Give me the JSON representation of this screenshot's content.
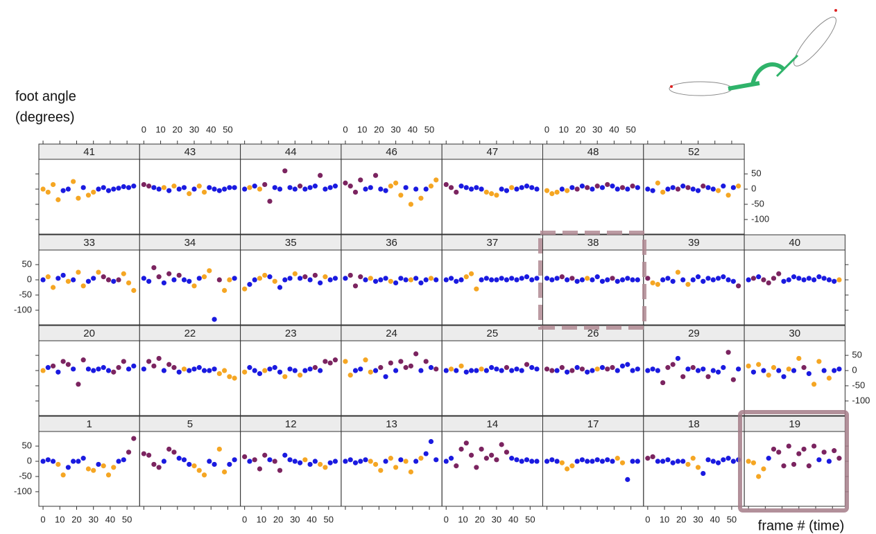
{
  "chart_data": {
    "type": "scatter",
    "ylabel": [
      "foot angle",
      "(degrees)"
    ],
    "xlabel": "frame # (time)",
    "x": [
      0,
      3,
      6,
      9,
      12,
      15,
      18,
      21,
      24,
      27,
      30,
      33,
      36,
      39,
      42,
      45,
      48,
      51,
      54
    ],
    "xlim": [
      -2.5,
      57.5
    ],
    "ylim": [
      -148,
      98
    ],
    "xticks": [
      0,
      10,
      20,
      30,
      40,
      50
    ],
    "yticks": [
      50,
      0,
      -50,
      -100
    ],
    "colors": [
      "#1a1ae0",
      "#f5a623",
      "#7b2460"
    ],
    "panels": [
      {
        "title": "41",
        "values": [
          0,
          -10,
          15,
          -35,
          -5,
          0,
          25,
          -30,
          5,
          -20,
          -10,
          0,
          5,
          -5,
          0,
          3,
          8,
          5,
          10
        ],
        "groups": [
          1,
          1,
          1,
          1,
          0,
          0,
          1,
          1,
          0,
          1,
          1,
          0,
          0,
          0,
          0,
          0,
          0,
          0,
          0
        ]
      },
      {
        "title": "43",
        "values": [
          15,
          10,
          5,
          0,
          5,
          -5,
          10,
          0,
          5,
          -15,
          0,
          10,
          -10,
          5,
          0,
          -5,
          0,
          5,
          5
        ],
        "groups": [
          2,
          2,
          0,
          0,
          1,
          0,
          1,
          0,
          0,
          1,
          0,
          1,
          1,
          0,
          0,
          0,
          0,
          0,
          0
        ]
      },
      {
        "title": "44",
        "values": [
          0,
          5,
          10,
          0,
          15,
          -40,
          5,
          0,
          60,
          5,
          0,
          10,
          0,
          5,
          10,
          45,
          0,
          5,
          10
        ],
        "groups": [
          0,
          1,
          0,
          1,
          2,
          2,
          0,
          0,
          2,
          0,
          0,
          2,
          0,
          0,
          0,
          2,
          0,
          0,
          0
        ]
      },
      {
        "title": "46",
        "values": [
          20,
          10,
          -10,
          30,
          0,
          5,
          45,
          0,
          -5,
          10,
          20,
          -20,
          5,
          -50,
          0,
          -30,
          0,
          10,
          30
        ],
        "groups": [
          2,
          2,
          2,
          2,
          0,
          0,
          2,
          0,
          0,
          1,
          1,
          1,
          0,
          1,
          0,
          1,
          0,
          1,
          1
        ]
      },
      {
        "title": "47",
        "values": [
          15,
          5,
          -10,
          10,
          5,
          0,
          5,
          0,
          -10,
          -15,
          -20,
          0,
          -5,
          5,
          0,
          5,
          10,
          5,
          0
        ],
        "groups": [
          2,
          2,
          2,
          0,
          0,
          0,
          0,
          0,
          1,
          1,
          1,
          0,
          0,
          1,
          0,
          0,
          0,
          0,
          0
        ]
      },
      {
        "title": "48",
        "values": [
          -5,
          -15,
          -10,
          0,
          -5,
          5,
          0,
          10,
          5,
          0,
          10,
          5,
          15,
          10,
          0,
          5,
          0,
          10,
          5
        ],
        "groups": [
          1,
          1,
          1,
          0,
          1,
          0,
          2,
          0,
          2,
          0,
          2,
          0,
          2,
          0,
          0,
          2,
          0,
          2,
          0
        ]
      },
      {
        "title": "52",
        "values": [
          0,
          -5,
          20,
          -10,
          0,
          5,
          0,
          10,
          5,
          0,
          -5,
          10,
          5,
          0,
          -5,
          10,
          -20,
          5,
          10
        ],
        "groups": [
          0,
          0,
          1,
          1,
          0,
          0,
          2,
          0,
          2,
          0,
          0,
          2,
          0,
          0,
          1,
          0,
          1,
          0,
          1
        ]
      },
      {
        "title": "33",
        "values": [
          0,
          10,
          -25,
          5,
          15,
          -5,
          0,
          25,
          -20,
          -5,
          5,
          25,
          10,
          0,
          -5,
          0,
          20,
          -10,
          -35
        ],
        "groups": [
          0,
          1,
          1,
          0,
          0,
          1,
          0,
          1,
          1,
          0,
          0,
          1,
          2,
          2,
          0,
          2,
          1,
          1,
          1
        ]
      },
      {
        "title": "34",
        "values": [
          5,
          -5,
          40,
          10,
          -10,
          20,
          0,
          15,
          0,
          -5,
          -20,
          5,
          10,
          30,
          -130,
          0,
          -35,
          0,
          5
        ],
        "groups": [
          0,
          0,
          2,
          2,
          0,
          2,
          0,
          2,
          0,
          0,
          1,
          0,
          1,
          1,
          0,
          2,
          1,
          1,
          0
        ]
      },
      {
        "title": "35",
        "values": [
          -30,
          -15,
          0,
          5,
          15,
          10,
          -5,
          -25,
          0,
          5,
          20,
          5,
          10,
          0,
          15,
          -10,
          10,
          0,
          5
        ],
        "groups": [
          1,
          0,
          0,
          1,
          1,
          0,
          1,
          0,
          0,
          0,
          1,
          0,
          2,
          0,
          2,
          0,
          1,
          0,
          0
        ]
      },
      {
        "title": "36",
        "values": [
          5,
          15,
          -20,
          10,
          0,
          5,
          -5,
          0,
          5,
          -5,
          -10,
          5,
          0,
          0,
          5,
          -10,
          0,
          5,
          0
        ],
        "groups": [
          0,
          2,
          2,
          2,
          0,
          1,
          0,
          0,
          0,
          1,
          0,
          0,
          0,
          1,
          0,
          0,
          0,
          1,
          0
        ]
      },
      {
        "title": "37",
        "values": [
          0,
          5,
          -5,
          0,
          10,
          20,
          -30,
          0,
          5,
          0,
          0,
          5,
          0,
          5,
          0,
          5,
          10,
          0,
          5
        ],
        "groups": [
          0,
          0,
          0,
          0,
          1,
          1,
          1,
          0,
          0,
          0,
          0,
          0,
          0,
          0,
          0,
          0,
          0,
          0,
          0
        ]
      },
      {
        "title": "38",
        "values": [
          5,
          0,
          5,
          10,
          0,
          5,
          -5,
          0,
          5,
          0,
          10,
          -5,
          0,
          5,
          -5,
          0,
          5,
          0,
          0
        ],
        "groups": [
          0,
          0,
          0,
          2,
          0,
          2,
          0,
          0,
          1,
          0,
          0,
          0,
          0,
          2,
          0,
          0,
          0,
          0,
          0
        ]
      },
      {
        "title": "39",
        "values": [
          5,
          -10,
          -15,
          0,
          5,
          -5,
          25,
          0,
          -15,
          0,
          10,
          -5,
          5,
          0,
          5,
          10,
          0,
          -5,
          -20
        ],
        "groups": [
          2,
          1,
          1,
          0,
          0,
          0,
          1,
          0,
          1,
          0,
          0,
          0,
          0,
          0,
          0,
          0,
          0,
          0,
          2
        ]
      },
      {
        "title": "40",
        "values": [
          0,
          5,
          10,
          0,
          -10,
          5,
          20,
          -5,
          0,
          10,
          5,
          0,
          5,
          0,
          10,
          5,
          0,
          -5,
          0
        ],
        "groups": [
          0,
          2,
          0,
          2,
          2,
          2,
          2,
          0,
          0,
          0,
          0,
          0,
          0,
          0,
          0,
          0,
          0,
          0,
          1
        ]
      },
      {
        "title": "20",
        "values": [
          0,
          10,
          15,
          -5,
          30,
          20,
          5,
          -45,
          35,
          5,
          0,
          5,
          10,
          0,
          -5,
          10,
          30,
          5,
          15
        ],
        "groups": [
          1,
          0,
          2,
          0,
          2,
          2,
          0,
          2,
          2,
          0,
          0,
          0,
          0,
          0,
          2,
          2,
          2,
          0,
          0
        ]
      },
      {
        "title": "22",
        "values": [
          5,
          30,
          15,
          40,
          0,
          20,
          10,
          -5,
          5,
          0,
          5,
          10,
          0,
          0,
          5,
          -10,
          0,
          -20,
          -25
        ],
        "groups": [
          0,
          2,
          2,
          2,
          0,
          2,
          2,
          0,
          1,
          0,
          0,
          0,
          0,
          0,
          0,
          1,
          1,
          1,
          1
        ]
      },
      {
        "title": "23",
        "values": [
          -5,
          10,
          0,
          -10,
          0,
          5,
          10,
          -5,
          -20,
          5,
          0,
          -15,
          0,
          5,
          10,
          0,
          30,
          25,
          35
        ],
        "groups": [
          1,
          0,
          0,
          0,
          1,
          0,
          0,
          0,
          1,
          0,
          0,
          1,
          0,
          0,
          2,
          0,
          2,
          2,
          2
        ]
      },
      {
        "title": "24",
        "values": [
          30,
          -15,
          0,
          5,
          35,
          -5,
          0,
          10,
          -20,
          25,
          0,
          30,
          10,
          15,
          55,
          0,
          30,
          10,
          5
        ],
        "groups": [
          1,
          1,
          0,
          0,
          1,
          1,
          0,
          2,
          0,
          2,
          0,
          2,
          2,
          2,
          2,
          0,
          2,
          0,
          2
        ]
      },
      {
        "title": "25",
        "values": [
          0,
          5,
          0,
          15,
          -5,
          0,
          0,
          5,
          0,
          10,
          5,
          0,
          10,
          0,
          5,
          0,
          20,
          10,
          5
        ],
        "groups": [
          0,
          1,
          0,
          1,
          0,
          0,
          0,
          1,
          0,
          0,
          0,
          0,
          2,
          0,
          0,
          0,
          2,
          0,
          0
        ]
      },
      {
        "title": "26",
        "values": [
          5,
          0,
          0,
          10,
          -5,
          0,
          10,
          5,
          -5,
          0,
          5,
          10,
          5,
          10,
          0,
          15,
          20,
          0,
          5
        ],
        "groups": [
          2,
          2,
          0,
          2,
          0,
          2,
          0,
          2,
          0,
          0,
          1,
          0,
          2,
          2,
          0,
          0,
          0,
          0,
          0
        ]
      },
      {
        "title": "29",
        "values": [
          0,
          5,
          0,
          -40,
          10,
          20,
          40,
          -20,
          5,
          10,
          0,
          5,
          -20,
          0,
          -5,
          10,
          60,
          -30,
          5
        ],
        "groups": [
          0,
          0,
          0,
          2,
          2,
          2,
          0,
          2,
          0,
          2,
          0,
          0,
          2,
          0,
          0,
          0,
          2,
          2,
          0
        ]
      },
      {
        "title": "30",
        "values": [
          15,
          -5,
          20,
          0,
          -15,
          10,
          0,
          -20,
          5,
          0,
          40,
          10,
          -10,
          -45,
          30,
          0,
          -25,
          0,
          5
        ],
        "groups": [
          1,
          0,
          1,
          0,
          1,
          1,
          0,
          0,
          1,
          0,
          1,
          2,
          0,
          1,
          1,
          0,
          1,
          0,
          0
        ]
      },
      {
        "title": "1",
        "values": [
          0,
          5,
          0,
          -10,
          -45,
          -20,
          0,
          0,
          10,
          -25,
          -30,
          -10,
          -15,
          -45,
          -20,
          0,
          5,
          30,
          75
        ],
        "groups": [
          0,
          0,
          0,
          1,
          1,
          0,
          0,
          0,
          0,
          1,
          1,
          0,
          1,
          1,
          1,
          0,
          0,
          2,
          2
        ]
      },
      {
        "title": "5",
        "values": [
          25,
          20,
          -10,
          -20,
          0,
          40,
          30,
          10,
          5,
          -10,
          -15,
          -30,
          -45,
          0,
          -10,
          40,
          -35,
          -10,
          5
        ],
        "groups": [
          2,
          2,
          2,
          2,
          0,
          2,
          2,
          0,
          0,
          0,
          1,
          1,
          1,
          0,
          0,
          1,
          1,
          0,
          0
        ]
      },
      {
        "title": "12",
        "values": [
          15,
          0,
          5,
          -25,
          20,
          5,
          0,
          -30,
          20,
          5,
          0,
          -5,
          5,
          -10,
          0,
          -10,
          -20,
          -5,
          0
        ],
        "groups": [
          2,
          0,
          2,
          2,
          2,
          0,
          2,
          2,
          0,
          0,
          0,
          0,
          1,
          0,
          0,
          1,
          1,
          0,
          0
        ]
      },
      {
        "title": "13",
        "values": [
          0,
          5,
          -5,
          0,
          5,
          0,
          -10,
          -30,
          0,
          10,
          -20,
          5,
          0,
          -35,
          0,
          10,
          25,
          65,
          5
        ],
        "groups": [
          0,
          0,
          0,
          0,
          0,
          1,
          1,
          1,
          0,
          1,
          1,
          0,
          1,
          1,
          0,
          1,
          0,
          0,
          0
        ]
      },
      {
        "title": "14",
        "values": [
          0,
          10,
          -15,
          40,
          60,
          20,
          -20,
          40,
          10,
          20,
          5,
          55,
          30,
          10,
          5,
          0,
          5,
          0,
          0
        ],
        "groups": [
          0,
          0,
          2,
          2,
          2,
          2,
          2,
          2,
          2,
          2,
          2,
          2,
          2,
          0,
          0,
          0,
          0,
          0,
          0
        ]
      },
      {
        "title": "17",
        "values": [
          0,
          5,
          0,
          -5,
          -25,
          -15,
          0,
          5,
          0,
          0,
          5,
          0,
          5,
          0,
          10,
          -5,
          -60,
          0,
          0
        ],
        "groups": [
          0,
          0,
          0,
          1,
          1,
          1,
          0,
          0,
          0,
          0,
          0,
          0,
          0,
          0,
          1,
          1,
          0,
          0,
          0
        ]
      },
      {
        "title": "18",
        "values": [
          10,
          15,
          0,
          0,
          5,
          -5,
          0,
          0,
          -10,
          10,
          -20,
          -40,
          5,
          0,
          -5,
          5,
          10,
          0,
          5
        ],
        "groups": [
          2,
          2,
          0,
          0,
          0,
          0,
          0,
          0,
          1,
          1,
          1,
          0,
          0,
          0,
          0,
          0,
          0,
          0,
          0
        ]
      },
      {
        "title": "19",
        "values": [
          0,
          -5,
          -50,
          -25,
          10,
          40,
          30,
          -15,
          50,
          -10,
          25,
          40,
          -15,
          50,
          5,
          30,
          0,
          35,
          10
        ],
        "groups": [
          1,
          1,
          1,
          1,
          0,
          2,
          2,
          2,
          2,
          2,
          2,
          2,
          2,
          2,
          0,
          2,
          0,
          2,
          2
        ]
      }
    ]
  }
}
